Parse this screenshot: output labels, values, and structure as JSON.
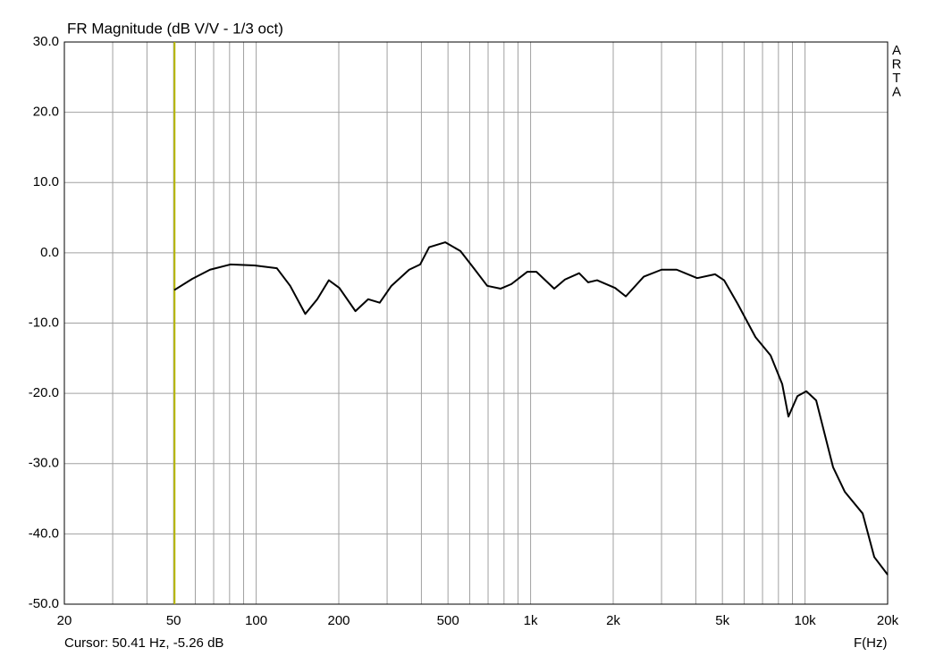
{
  "chart_data": {
    "type": "line",
    "title": "FR Magnitude (dB V/V - 1/3 oct)",
    "side_label": "ARTA",
    "x_label": "F(Hz)",
    "x_scale": "log",
    "xlim": [
      20,
      20000
    ],
    "ylim": [
      -50,
      30
    ],
    "xticks": [
      20,
      50,
      100,
      200,
      500,
      {
        "value": 1000,
        "label": "1k"
      },
      {
        "value": 2000,
        "label": "2k"
      },
      {
        "value": 5000,
        "label": "5k"
      },
      {
        "value": 10000,
        "label": "10k"
      },
      {
        "value": 20000,
        "label": "20k"
      }
    ],
    "xgrid_minor": [
      30,
      40,
      60,
      70,
      80,
      90,
      300,
      400,
      600,
      700,
      800,
      900,
      3000,
      4000,
      6000,
      7000,
      8000,
      9000
    ],
    "yticks": [
      {
        "value": 30,
        "label": "30.0"
      },
      {
        "value": 20,
        "label": "20.0"
      },
      {
        "value": 10,
        "label": "10.0"
      },
      {
        "value": 0,
        "label": "0.0"
      },
      {
        "value": -10,
        "label": "-10.0"
      },
      {
        "value": -20,
        "label": "-20.0"
      },
      {
        "value": -30,
        "label": "-30.0"
      },
      {
        "value": -40,
        "label": "-40.0"
      },
      {
        "value": -50,
        "label": "-50.0"
      }
    ],
    "grid": true,
    "grid_color": "#a0a0a0",
    "cursor": {
      "label": "Cursor: 50.41 Hz, -5.26 dB",
      "x": 50.41,
      "y": -5.26,
      "color": "#b8b800"
    },
    "x": [
      50.3,
      58.5,
      67.9,
      80.7,
      98.6,
      119,
      133,
      151,
      167,
      184,
      201,
      230,
      256,
      282,
      311,
      361,
      396,
      427,
      489,
      555,
      621,
      695,
      778,
      851,
      973,
      1050,
      1219,
      1334,
      1503,
      1621,
      1747,
      2032,
      2223,
      2584,
      3000,
      3406,
      4047,
      4700,
      5070,
      5680,
      6600,
      7490,
      8260,
      8700,
      9380,
      10110,
      10980,
      12650,
      13960,
      16220,
      17880,
      20000
    ],
    "series": [
      {
        "color": "#000000",
        "values": [
          -5.3,
          -3.7,
          -2.4,
          -1.65,
          -1.8,
          -2.2,
          -4.7,
          -8.7,
          -6.6,
          -3.9,
          -5.0,
          -8.3,
          -6.6,
          -7.1,
          -4.7,
          -2.4,
          -1.65,
          0.8,
          1.5,
          0.25,
          -2.2,
          -4.7,
          -5.1,
          -4.45,
          -2.7,
          -2.7,
          -5.1,
          -3.8,
          -2.9,
          -4.2,
          -3.9,
          -5.0,
          -6.2,
          -3.4,
          -2.4,
          -2.4,
          -3.6,
          -3.05,
          -3.9,
          -7.25,
          -12.0,
          -14.6,
          -18.7,
          -23.3,
          -20.4,
          -19.7,
          -21.0,
          -30.5,
          -34.0,
          -37.1,
          -43.3,
          -45.8
        ]
      }
    ]
  }
}
